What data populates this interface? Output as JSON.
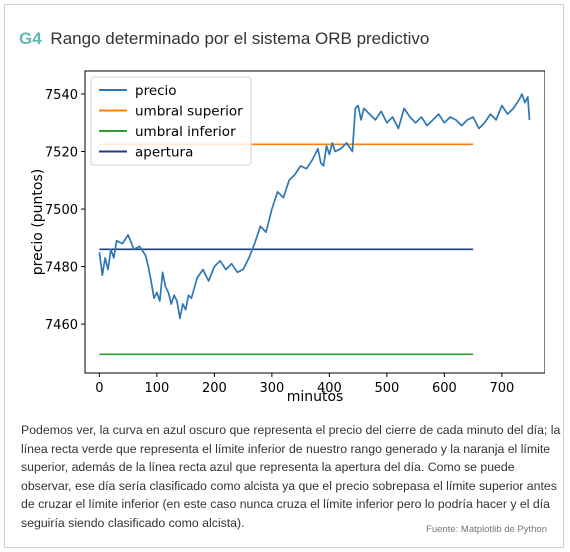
{
  "header": {
    "tag": "G4",
    "title": "Rango determinado por el sistema ORB  predictivo"
  },
  "chart_data": {
    "type": "line",
    "xlabel": "minutos",
    "ylabel": "precio (puntos)",
    "xlim": [
      -25,
      775
    ],
    "ylim": [
      7443,
      7548
    ],
    "xticks": [
      0,
      100,
      200,
      300,
      400,
      500,
      600,
      700
    ],
    "yticks": [
      7460,
      7480,
      7500,
      7520,
      7540
    ],
    "grid": false,
    "legend_position": "top-left",
    "series": [
      {
        "name": "precio",
        "color": "#2f77b4",
        "x": [
          0,
          5,
          10,
          15,
          20,
          25,
          30,
          40,
          50,
          60,
          70,
          80,
          85,
          90,
          95,
          100,
          105,
          110,
          115,
          120,
          125,
          130,
          135,
          140,
          145,
          150,
          155,
          160,
          170,
          180,
          190,
          200,
          210,
          220,
          230,
          240,
          250,
          260,
          270,
          280,
          290,
          300,
          310,
          320,
          330,
          340,
          350,
          360,
          370,
          380,
          385,
          390,
          395,
          400,
          405,
          410,
          420,
          430,
          440,
          445,
          450,
          455,
          460,
          470,
          480,
          490,
          500,
          510,
          520,
          530,
          540,
          550,
          560,
          570,
          580,
          590,
          600,
          610,
          620,
          630,
          640,
          650,
          660,
          670,
          680,
          690,
          700,
          710,
          720,
          730,
          735,
          740,
          745,
          748
        ],
        "y": [
          7485,
          7477,
          7483,
          7479,
          7486,
          7483,
          7489,
          7488,
          7491,
          7486,
          7487,
          7484,
          7480,
          7475,
          7469,
          7471,
          7468,
          7478,
          7473,
          7471,
          7467,
          7470,
          7468,
          7462,
          7467,
          7465,
          7470,
          7469,
          7476,
          7479,
          7475,
          7480,
          7482,
          7479,
          7481,
          7478,
          7479,
          7483,
          7488,
          7494,
          7492,
          7500,
          7506,
          7504,
          7510,
          7512,
          7515,
          7514,
          7517,
          7521,
          7516,
          7515,
          7522,
          7519,
          7523,
          7520,
          7521,
          7523,
          7520,
          7535,
          7536,
          7531,
          7535,
          7533,
          7531,
          7534,
          7530,
          7532,
          7528,
          7535,
          7532,
          7530,
          7532,
          7529,
          7531,
          7533,
          7530,
          7532,
          7531,
          7529,
          7531,
          7532,
          7528,
          7530,
          7533,
          7531,
          7536,
          7533,
          7535,
          7538,
          7540,
          7537,
          7539,
          7531
        ]
      },
      {
        "name": "umbral superior",
        "color": "#ff7f0e",
        "x": [
          0,
          650
        ],
        "y": [
          7522.5,
          7522.5
        ]
      },
      {
        "name": "umbral inferior",
        "color": "#2ca02c",
        "x": [
          0,
          650
        ],
        "y": [
          7449.5,
          7449.5
        ]
      },
      {
        "name": "apertura",
        "color": "#1f3d7a",
        "x": [
          0,
          650
        ],
        "y": [
          7486,
          7486
        ]
      }
    ]
  },
  "caption": "Podemos ver, la curva en azul oscuro que representa el precio del cierre de cada minuto del día; la línea recta verde que representa el límite inferior de nuestro rango generado y la naranja el límite superior, además de la línea recta azul que representa la apertura del día. Como se puede observar, ese día sería clasificado como alcista ya que el precio sobrepasa el límite superior antes de cruzar el límite inferior (en este caso nunca cruza el límite inferior pero lo podría hacer y el día seguiría siendo clasificado como alcista).",
  "source": "Fuente: Matplotlib de Python"
}
